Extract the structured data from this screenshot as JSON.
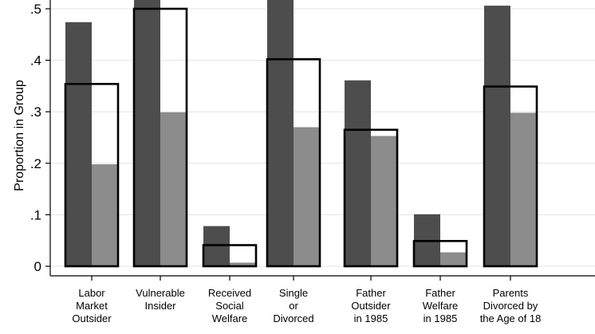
{
  "chart_data": {
    "type": "bar",
    "ylabel": "Proportion in Group",
    "ylim": [
      0,
      0.5
    ],
    "yticks": [
      0,
      0.1,
      0.2,
      0.3,
      0.4,
      0.5
    ],
    "ytick_labels": [
      "0",
      ".1",
      ".2",
      ".3",
      ".4",
      ".5"
    ],
    "grid": true,
    "categories": [
      [
        "Labor",
        "Market",
        "Outsider"
      ],
      [
        "Vulnerable",
        "Insider"
      ],
      [
        "Received",
        "Social",
        "Welfare"
      ],
      [
        "Single",
        "or",
        "Divorced"
      ],
      [
        "Father",
        "Outsider",
        "in 1985"
      ],
      [
        "Father",
        "Welfare",
        "in 1985"
      ],
      [
        "Parents",
        "Divorced by",
        "the Age of 18"
      ]
    ],
    "series": [
      {
        "values": [
          0.474,
          0.53,
          0.078,
          0.53,
          0.361,
          0.101,
          0.506
        ],
        "color": "#4d4d4d",
        "style": "filled"
      },
      {
        "values": [
          0.198,
          0.299,
          0.007,
          0.27,
          0.253,
          0.027,
          0.298
        ],
        "color": "#8c8c8c",
        "style": "filled"
      },
      {
        "values": [
          0.354,
          0.5,
          0.041,
          0.402,
          0.265,
          0.049,
          0.349
        ],
        "color": "#000000",
        "style": "outline"
      }
    ]
  }
}
